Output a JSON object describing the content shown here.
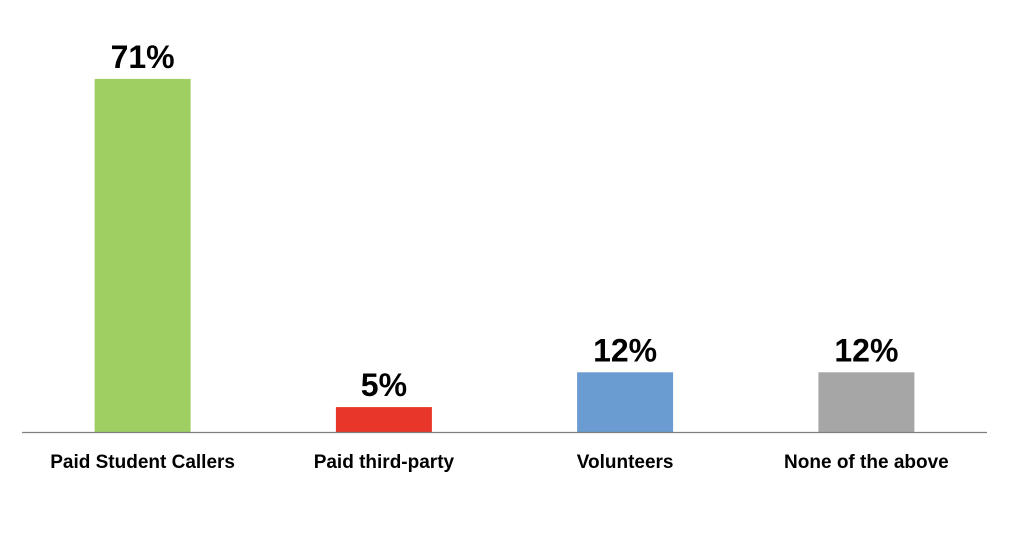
{
  "chart_data": {
    "type": "bar",
    "title": "",
    "xlabel": "",
    "ylabel": "",
    "ylim": [
      0,
      75
    ],
    "grid": false,
    "legend": "none",
    "categories": [
      "Paid Student Callers",
      "Paid third-party",
      "Volunteers",
      "None of the above"
    ],
    "values": [
      71,
      5,
      12,
      12
    ],
    "data_labels": [
      "71%",
      "5%",
      "12%",
      "12%"
    ],
    "colors": [
      "#9fce63",
      "#e8362a",
      "#6a9bd1",
      "#a6a6a6"
    ],
    "axis_color": "#7f7f7f"
  }
}
